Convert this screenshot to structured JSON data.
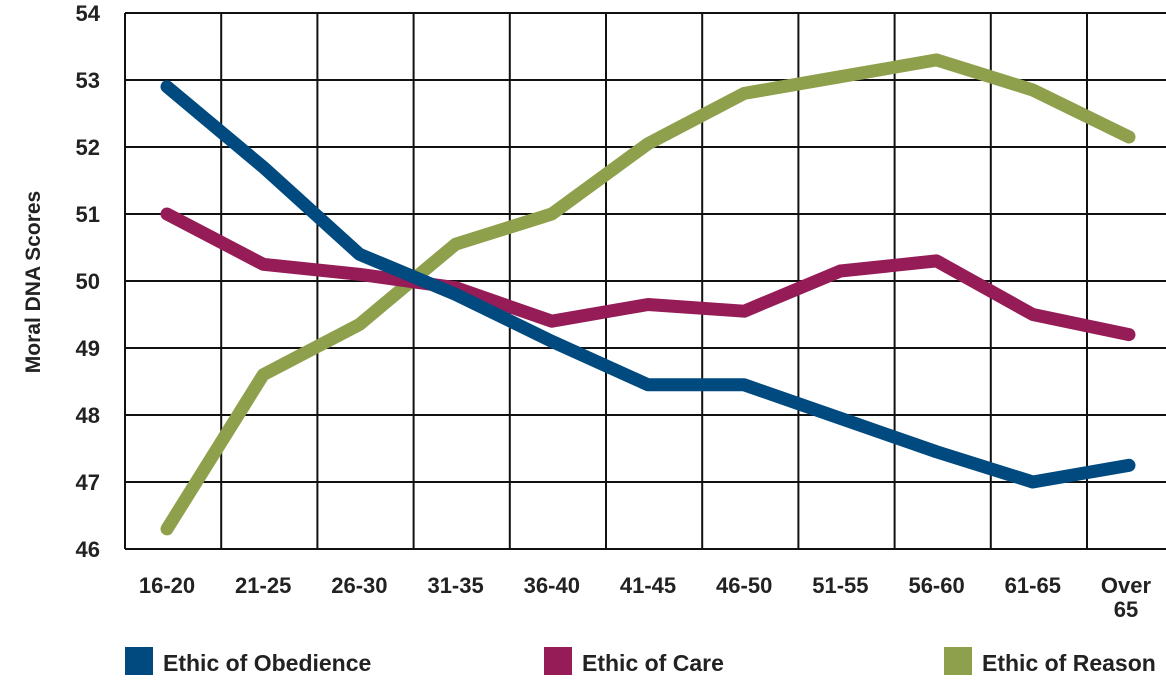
{
  "chart_data": {
    "type": "line",
    "ylabel": "Moral DNA Scores",
    "xlabel": "",
    "ylim": [
      46,
      54
    ],
    "yticks": [
      "46",
      "47",
      "48",
      "49",
      "50",
      "51",
      "52",
      "53",
      "54"
    ],
    "categories": [
      "16-20",
      "21-25",
      "26-30",
      "31-35",
      "36-40",
      "41-45",
      "46-50",
      "51-55",
      "56-60",
      "61-65",
      "Over 65"
    ],
    "grid": true,
    "legend_position": "bottom",
    "series": [
      {
        "name": "Ethic of Obedience",
        "color": "#004a80",
        "values": [
          52.9,
          51.7,
          50.4,
          49.8,
          49.1,
          48.45,
          48.45,
          47.95,
          47.45,
          47.0,
          47.25
        ]
      },
      {
        "name": "Ethic of Care",
        "color": "#961c58",
        "values": [
          51.0,
          50.25,
          50.1,
          49.9,
          49.4,
          49.65,
          49.55,
          50.15,
          50.3,
          49.5,
          49.2
        ]
      },
      {
        "name": "Ethic of Reason",
        "color": "#8fa04c",
        "values": [
          46.3,
          48.6,
          49.35,
          50.55,
          51.0,
          52.05,
          52.8,
          53.05,
          53.3,
          52.85,
          52.15
        ]
      }
    ]
  }
}
